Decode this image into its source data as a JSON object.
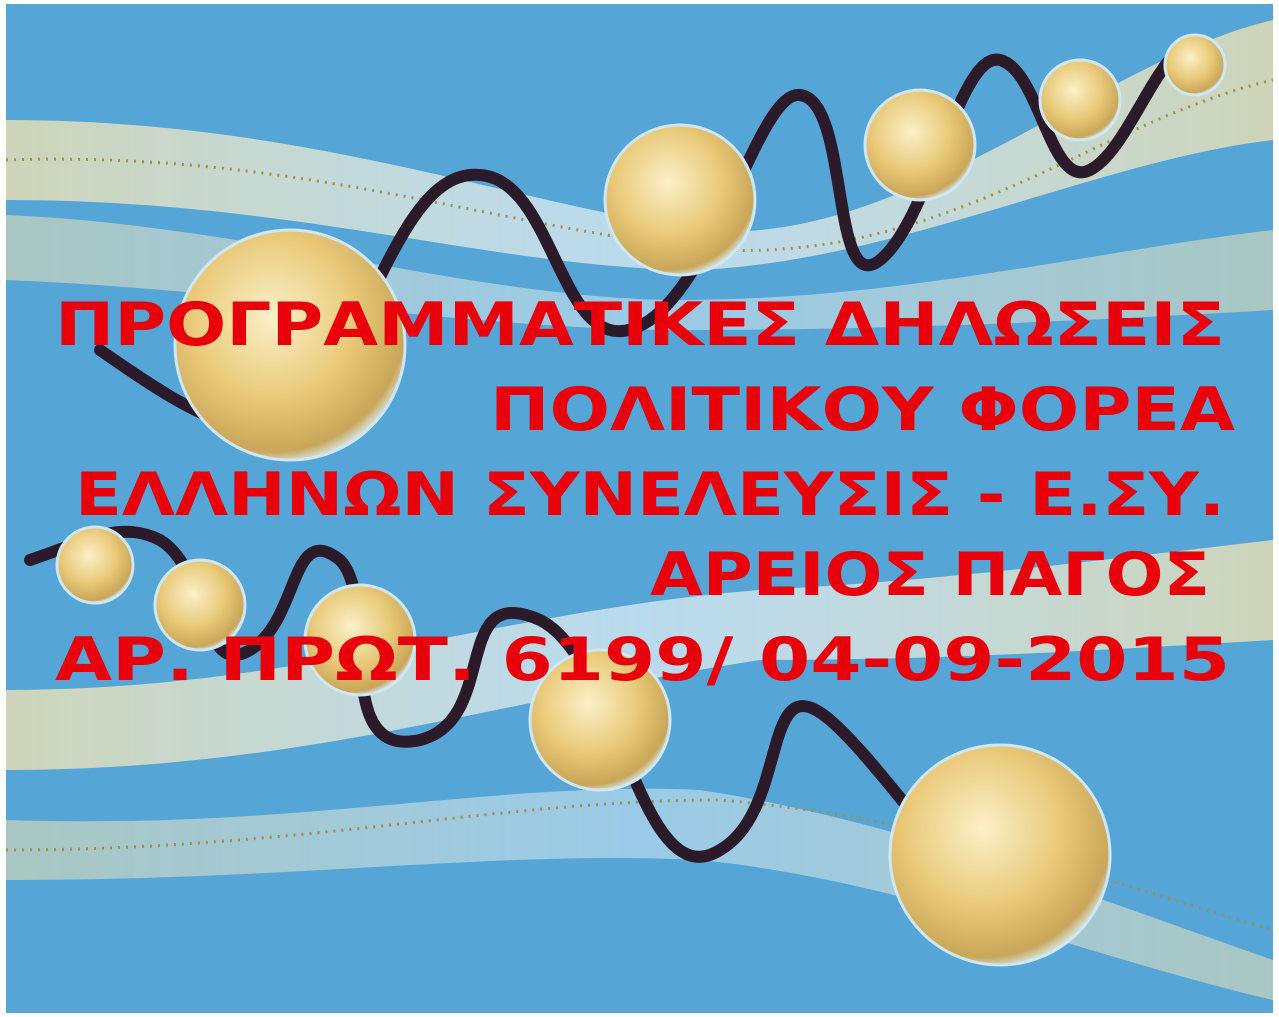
{
  "lines": [
    "ΠΡΟΓΡΑΜΜΑΤΙΚΕΣ ΔΗΛΩΣΕΙΣ",
    "ΠΟΛΙΤΙΚΟΥ ΦΟΡΕΑ",
    "ΕΛΛΗΝΩΝ ΣΥΝΕΛΕΥΣΙΣ - Ε.ΣΥ.",
    "ΑΡΕΙΟΣ ΠΑΓΟΣ",
    "ΑΡ. ΠΡΩΤ. 6199/ 04-09-2015"
  ]
}
